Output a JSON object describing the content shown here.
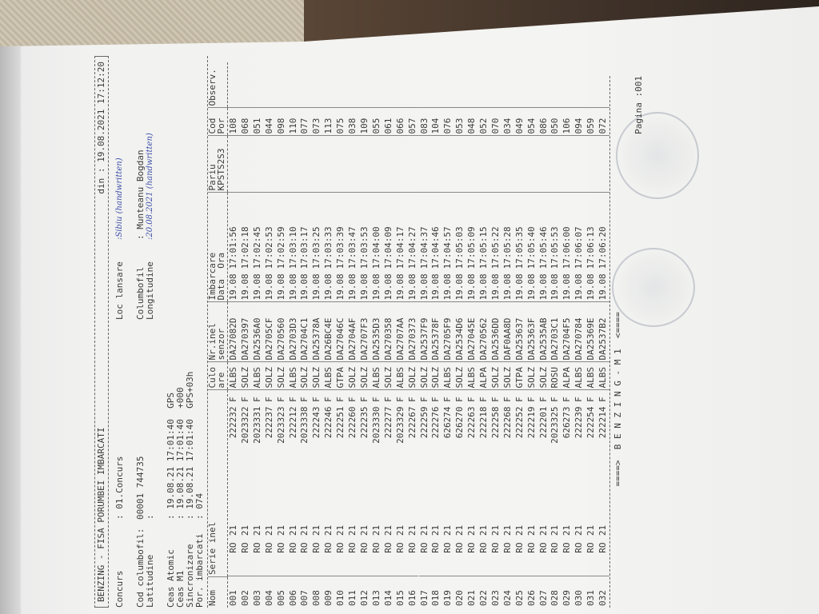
{
  "header": {
    "title": "BENZING - FISA PORUMBEI IMBARCATI",
    "date_label": "din : 19.08.2021 17:12:20",
    "concurs_label": "Concurs",
    "concurs_value": ": 01.Concurs",
    "loc_lansare_label": "Loc lansare",
    "loc_lansare_value": ":Sibiu (handwritten)",
    "cod_columbofil_label": "Cod columbofil:",
    "cod_columbofil_value": "00001 744735",
    "columbofil_label": "Columbofil",
    "columbofil_value": ": Munteanu Bogdan",
    "latitudine_label": "Latitudine",
    "latitudine_value": ":",
    "longitudine_label": "Longitudine",
    "longitudine_value": ":20.08.2021 (handwritten)",
    "ceas_atomic_label": "Ceas Atomic",
    "ceas_atomic_value": ": 19.08.21 17:01:40  GPS",
    "ceas_m1_label": "Ceas M1",
    "ceas_m1_value": ": 19.08.21 17:01:40  +000",
    "sincronizare_label": "Sincronizare",
    "sincronizare_value": ": 19.08.21 17:01:40  GPS+03h",
    "por_imbarcati_label": "Por. imbarcati",
    "por_imbarcati_value": ": 074"
  },
  "table": {
    "headers": [
      "Nom",
      "Serie inel",
      "Culo\nare",
      "Nr.inel\nsenzor",
      "Imbarcare\nData  Ora",
      "Pariu\nKPSTS2S3",
      "Cod\nPor",
      "Observ."
    ],
    "rows": [
      [
        "001",
        "RO",
        "21",
        "222232",
        "F",
        "ALBS",
        "DA27082D",
        "19.08",
        "17:01:56",
        "",
        "108",
        ""
      ],
      [
        "002",
        "RO",
        "21",
        "2023322",
        "F",
        "SOLZ",
        "DA270397",
        "19.08",
        "17:02:18",
        "",
        "068",
        ""
      ],
      [
        "003",
        "RO",
        "21",
        "2023331",
        "F",
        "ALBS",
        "DA2536A0",
        "19.08",
        "17:02:45",
        "",
        "051",
        ""
      ],
      [
        "004",
        "RO",
        "21",
        "222237",
        "F",
        "SOLZ",
        "DA2705CF",
        "19.08",
        "17:02:53",
        "",
        "044",
        ""
      ],
      [
        "005",
        "RO",
        "21",
        "2023323",
        "F",
        "SOLZ",
        "DA270560",
        "19.08",
        "17:02:59",
        "",
        "098",
        ""
      ],
      [
        "006",
        "RO",
        "21",
        "222212",
        "F",
        "ALBS",
        "DA2703D3",
        "19.08",
        "17:03:10",
        "",
        "110",
        ""
      ],
      [
        "007",
        "RO",
        "21",
        "2023338",
        "F",
        "SOLZ",
        "DA2704C1",
        "19.08",
        "17:03:17",
        "",
        "077",
        ""
      ],
      [
        "008",
        "RO",
        "21",
        "222243",
        "F",
        "SOLZ",
        "DA25378A",
        "19.08",
        "17:03:25",
        "",
        "073",
        ""
      ],
      [
        "009",
        "RO",
        "21",
        "222246",
        "F",
        "ALBS",
        "DA26BC4E",
        "19.08",
        "17:03:33",
        "",
        "113",
        ""
      ],
      [
        "010",
        "RO",
        "21",
        "222251",
        "F",
        "GTPA",
        "DA27046C",
        "19.08",
        "17:03:39",
        "",
        "075",
        ""
      ],
      [
        "011",
        "RO",
        "21",
        "222260",
        "F",
        "SOLZ",
        "DA2704AF",
        "19.08",
        "17:03:47",
        "",
        "038",
        ""
      ],
      [
        "012",
        "RO",
        "21",
        "222235",
        "F",
        "SOLZ",
        "DA2707F3",
        "19.08",
        "17:03:53",
        "",
        "109",
        ""
      ],
      [
        "013",
        "RO",
        "21",
        "2023330",
        "F",
        "ALBS",
        "DA2535D3",
        "19.08",
        "17:04:00",
        "",
        "055",
        ""
      ],
      [
        "014",
        "RO",
        "21",
        "222277",
        "F",
        "SOLZ",
        "DA270358",
        "19.08",
        "17:04:09",
        "",
        "061",
        ""
      ],
      [
        "015",
        "RO",
        "21",
        "2023329",
        "F",
        "ALBS",
        "DA2707AA",
        "19.08",
        "17:04:17",
        "",
        "066",
        ""
      ],
      [
        "016",
        "RO",
        "21",
        "222267",
        "F",
        "SOLZ",
        "DA270373",
        "19.08",
        "17:04:27",
        "",
        "057",
        ""
      ],
      [
        "017",
        "RO",
        "21",
        "222259",
        "F",
        "SOLZ",
        "DA2537F9",
        "19.08",
        "17:04:37",
        "",
        "083",
        ""
      ],
      [
        "018",
        "RO",
        "21",
        "222276",
        "F",
        "SOLZ",
        "DA25378F",
        "19.08",
        "17:04:46",
        "",
        "104",
        ""
      ],
      [
        "019",
        "RO",
        "21",
        "626274",
        "F",
        "ALBS",
        "DA2705F9",
        "19.08",
        "17:04:57",
        "",
        "076",
        ""
      ],
      [
        "020",
        "RO",
        "21",
        "626270",
        "F",
        "SOLZ",
        "DA2534D6",
        "19.08",
        "17:05:03",
        "",
        "053",
        ""
      ],
      [
        "021",
        "RO",
        "21",
        "222263",
        "F",
        "ALBS",
        "DA27045E",
        "19.08",
        "17:05:09",
        "",
        "048",
        ""
      ],
      [
        "022",
        "RO",
        "21",
        "222218",
        "F",
        "ALPA",
        "DA270562",
        "19.08",
        "17:05:15",
        "",
        "052",
        ""
      ],
      [
        "023",
        "RO",
        "21",
        "222258",
        "F",
        "SOLZ",
        "DA2536DD",
        "19.08",
        "17:05:22",
        "",
        "070",
        ""
      ],
      [
        "024",
        "RO",
        "21",
        "222268",
        "F",
        "SOLZ",
        "DAF0AA8D",
        "19.08",
        "17:05:28",
        "",
        "034",
        ""
      ],
      [
        "025",
        "RO",
        "21",
        "222252",
        "F",
        "GTPA",
        "DA253637",
        "19.08",
        "17:05:35",
        "",
        "049",
        ""
      ],
      [
        "026",
        "RO",
        "21",
        "222219",
        "F",
        "SOLZ",
        "DA25363F",
        "19.08",
        "17:05:40",
        "",
        "054",
        ""
      ],
      [
        "027",
        "RO",
        "21",
        "222201",
        "F",
        "SOLZ",
        "DA2535AB",
        "19.08",
        "17:05:46",
        "",
        "086",
        ""
      ],
      [
        "028",
        "RO",
        "21",
        "2023325",
        "F",
        "ROSU",
        "DA2703C1",
        "19.08",
        "17:05:53",
        "",
        "050",
        ""
      ],
      [
        "029",
        "RO",
        "21",
        "626273",
        "F",
        "ALPA",
        "DA2704F5",
        "19.08",
        "17:06:00",
        "",
        "106",
        ""
      ],
      [
        "030",
        "RO",
        "21",
        "222239",
        "F",
        "ALBS",
        "DA270784",
        "19.08",
        "17:06:07",
        "",
        "094",
        ""
      ],
      [
        "031",
        "RO",
        "21",
        "222254",
        "F",
        "ALBS",
        "DA25369E",
        "19.08",
        "17:06:13",
        "",
        "059",
        ""
      ],
      [
        "032",
        "RO",
        "21",
        "222214",
        "F",
        "ALBS",
        "DA2537B2",
        "19.08",
        "17:06:20",
        "",
        "072",
        ""
      ]
    ]
  },
  "footer": {
    "brand": "====>  B E N Z I N G - M 1  <====",
    "page": "Pagina :001"
  },
  "colors": {
    "paper": "#f4f4f2",
    "ink": "#3a3a3a",
    "handwriting": "#3d4fa8"
  }
}
